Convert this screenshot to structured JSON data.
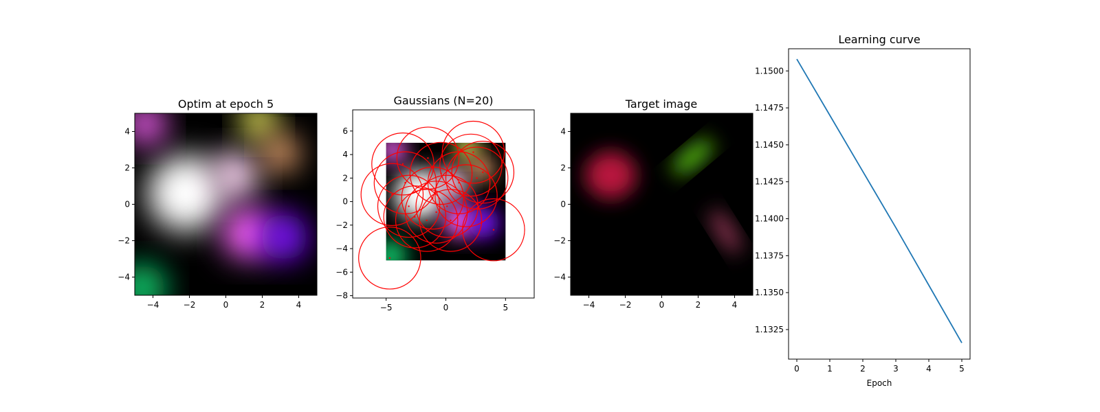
{
  "chart_data": [
    {
      "type": "heatmap",
      "title": "Optim at epoch 5",
      "xlim": [
        -5,
        5
      ],
      "ylim": [
        -5,
        5
      ],
      "xticks": [
        -4,
        -2,
        0,
        2,
        4
      ],
      "yticks": [
        -4,
        -2,
        0,
        2,
        4
      ],
      "xtick_labels": [
        "−4",
        "−2",
        "0",
        "2",
        "4"
      ],
      "ytick_labels": [
        "−4",
        "−2",
        "0",
        "2",
        "4"
      ],
      "background": "#000000",
      "blobs": [
        {
          "x": -2.2,
          "y": 0.6,
          "sigma": 2.1,
          "amp": 2.2,
          "color": "#ffffff"
        },
        {
          "x": 0.5,
          "y": 1.6,
          "sigma": 1.3,
          "amp": 1.1,
          "color": "#ffd6f5"
        },
        {
          "x": 1.8,
          "y": 4.6,
          "sigma": 1.0,
          "amp": 1.3,
          "color": "#ffff66"
        },
        {
          "x": 3.0,
          "y": 2.8,
          "sigma": 1.0,
          "amp": 1.0,
          "color": "#ffb27a"
        },
        {
          "x": 1.2,
          "y": -1.6,
          "sigma": 1.4,
          "amp": 1.3,
          "color": "#ff66ff"
        },
        {
          "x": 3.2,
          "y": -1.8,
          "sigma": 1.3,
          "amp": 1.3,
          "color": "#7a10ff"
        },
        {
          "x": -4.6,
          "y": -4.6,
          "sigma": 1.3,
          "amp": 1.4,
          "color": "#10d070"
        },
        {
          "x": -4.4,
          "y": 4.4,
          "sigma": 1.1,
          "amp": 1.1,
          "color": "#ff66ff"
        }
      ]
    },
    {
      "type": "scatter",
      "title": "Gaussians (N=20)",
      "xlim": [
        -7.8,
        7.4
      ],
      "ylim": [
        -8.2,
        7.8
      ],
      "xticks": [
        -5,
        0,
        5
      ],
      "yticks": [
        -8,
        -6,
        -4,
        -2,
        0,
        2,
        4,
        6
      ],
      "xtick_labels": [
        "−5",
        "0",
        "5"
      ],
      "ytick_labels": [
        "−8",
        "−6",
        "−4",
        "−2",
        "0",
        "2",
        "4",
        "6"
      ],
      "image_extent": [
        -5,
        5,
        -5,
        5
      ],
      "circle_color": "#ff0000",
      "circle_radius": 2.6,
      "centers": [
        [
          -4.7,
          -4.8
        ],
        [
          -4.5,
          0.6
        ],
        [
          -3.6,
          3.2
        ],
        [
          -3.4,
          1.6
        ],
        [
          -3.1,
          -0.4
        ],
        [
          -2.6,
          -1.3
        ],
        [
          -1.6,
          -1.6
        ],
        [
          -1.5,
          3.7
        ],
        [
          -1.1,
          0.3
        ],
        [
          -0.8,
          -0.9
        ],
        [
          -0.4,
          2.4
        ],
        [
          0.1,
          -0.4
        ],
        [
          0.4,
          -1.6
        ],
        [
          1.1,
          1.6
        ],
        [
          1.7,
          0.5
        ],
        [
          2.1,
          3.1
        ],
        [
          2.3,
          4.2
        ],
        [
          2.6,
          2.0
        ],
        [
          3.1,
          2.5
        ],
        [
          4.0,
          -2.4
        ]
      ]
    },
    {
      "type": "heatmap",
      "title": "Target image",
      "xlim": [
        -5,
        5
      ],
      "ylim": [
        -5,
        5
      ],
      "xticks": [
        -4,
        -2,
        0,
        2,
        4
      ],
      "yticks": [
        -4,
        -2,
        0,
        2,
        4
      ],
      "xtick_labels": [
        "−4",
        "−2",
        "0",
        "2",
        "4"
      ],
      "ytick_labels": [
        "−4",
        "−2",
        "0",
        "2",
        "4"
      ],
      "background": "#000000",
      "blobs": [
        {
          "x": -2.8,
          "y": 1.6,
          "sx": 1.4,
          "sy": 1.3,
          "rot": 0,
          "amp": 1.0,
          "color": "#b8143c"
        },
        {
          "x": 1.7,
          "y": 2.6,
          "sx": 1.4,
          "sy": 0.45,
          "rot": 40,
          "amp": 1.0,
          "color": "#60d018"
        },
        {
          "x": 3.5,
          "y": -1.5,
          "sx": 1.4,
          "sy": 0.45,
          "rot": -58,
          "amp": 0.75,
          "color": "#c04870"
        }
      ]
    },
    {
      "type": "line",
      "title": "Learning curve",
      "xlabel": "Epoch",
      "ylabel": "",
      "xlim": [
        -0.25,
        5.25
      ],
      "ylim": [
        1.1305,
        1.1515
      ],
      "xticks": [
        0,
        1,
        2,
        3,
        4,
        5
      ],
      "yticks": [
        1.1325,
        1.135,
        1.1375,
        1.14,
        1.1425,
        1.145,
        1.1475,
        1.15
      ],
      "xtick_labels": [
        "0",
        "1",
        "2",
        "3",
        "4",
        "5"
      ],
      "ytick_labels": [
        "1.1325",
        "1.1350",
        "1.1375",
        "1.1400",
        "1.1425",
        "1.1450",
        "1.1475",
        "1.1500"
      ],
      "x": [
        0,
        1,
        2,
        3,
        4,
        5
      ],
      "y": [
        1.1508,
        1.147,
        1.1432,
        1.1394,
        1.1355,
        1.1316
      ],
      "color": "#1f77b4"
    }
  ]
}
